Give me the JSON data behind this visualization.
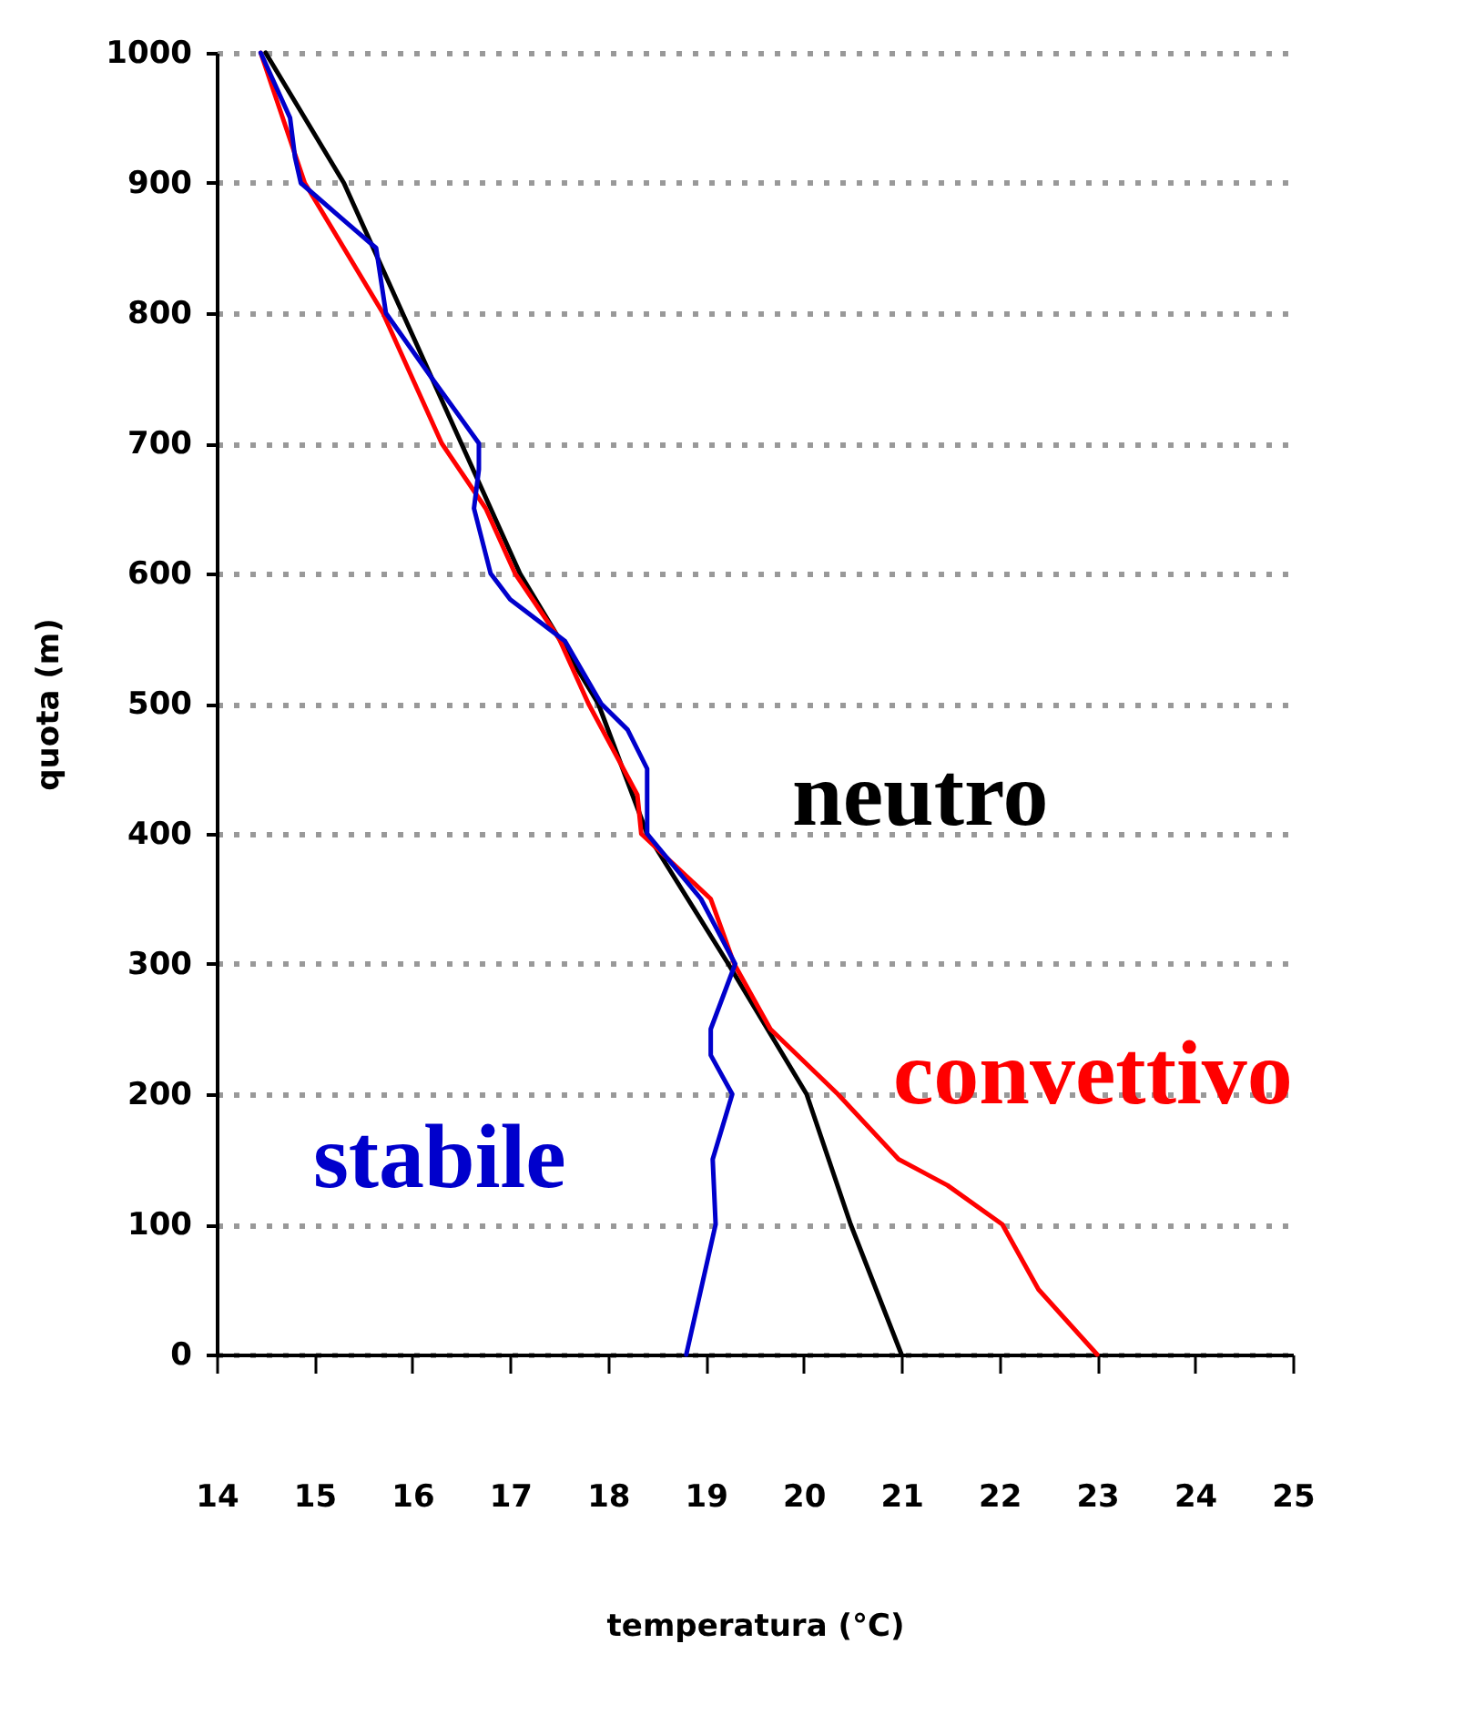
{
  "chart_data": {
    "type": "line",
    "xlabel": "temperatura (°C)",
    "ylabel": "quota (m)",
    "xlim": [
      14,
      25
    ],
    "xticks": [
      14,
      15,
      16,
      17,
      18,
      19,
      20,
      21,
      22,
      23,
      24,
      25
    ],
    "ylim": [
      0,
      1000
    ],
    "yticks": [
      0,
      100,
      200,
      300,
      400,
      500,
      600,
      700,
      800,
      900,
      1000
    ],
    "grid": "y",
    "legend": false,
    "series": [
      {
        "name": "neutro",
        "color": "#000000",
        "x": [
          21.0,
          20.48,
          20.03,
          19.23,
          18.4,
          17.9,
          17.1,
          16.5,
          15.9,
          15.3,
          14.5
        ],
        "values": [
          0,
          100,
          200,
          300,
          400,
          500,
          600,
          700,
          800,
          900,
          1000
        ]
      },
      {
        "name": "convettivo",
        "color": "#ff0000",
        "x": [
          23.0,
          22.4,
          22.03,
          21.47,
          20.97,
          20.35,
          19.66,
          19.29,
          19.05,
          18.34,
          18.3,
          17.8,
          17.5,
          17.05,
          16.75,
          16.3,
          15.7,
          14.9,
          14.45
        ],
        "values": [
          0,
          50,
          100,
          130,
          150,
          200,
          250,
          300,
          350,
          400,
          430,
          500,
          550,
          600,
          650,
          700,
          800,
          900,
          1000
        ]
      },
      {
        "name": "stabile",
        "color": "#0000cc",
        "x": [
          18.8,
          19.1,
          19.07,
          19.27,
          19.05,
          19.05,
          19.3,
          18.95,
          18.4,
          18.4,
          18.2,
          17.93,
          17.56,
          17.0,
          16.8,
          16.63,
          16.68,
          16.68,
          16.2,
          15.73,
          15.63,
          15.32,
          14.86,
          14.8,
          14.75,
          14.45
        ],
        "values": [
          0,
          100,
          150,
          200,
          230,
          250,
          300,
          350,
          400,
          450,
          480,
          500,
          548,
          580,
          600,
          650,
          680,
          700,
          750,
          800,
          850,
          870,
          900,
          920,
          950,
          1000
        ]
      }
    ]
  }
}
